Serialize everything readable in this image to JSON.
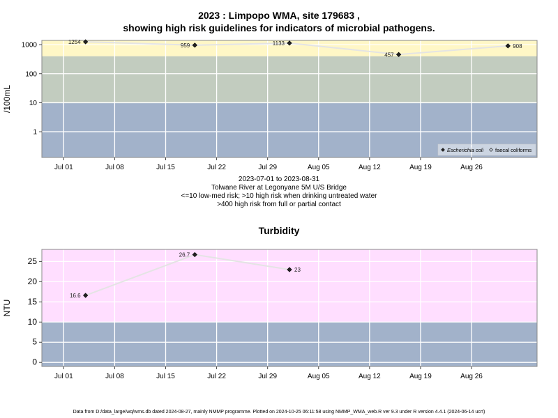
{
  "titles": {
    "main_line1": "2023 : Limpopo WMA, site 179683 ,",
    "main_line2": "showing high risk guidelines for indicators of microbial pathogens.",
    "turbidity": "Turbidity"
  },
  "captions": {
    "date_range": "2023-07-01 to 2023-08-31",
    "site": "Tolwane River at Legonyane 5M U/S Bridge",
    "risk_line1": "<=10 low-med risk; >10 high risk when drinking untreated water",
    "risk_line2": ">400 high risk from full or partial contact"
  },
  "footer": "Data from D:/data_large/wq/wms.db dated 2024-08-27, mainly NMMP programme. Plotted on 2024-10-25 06:11:58 using NMMP_WMA_web.R ver 9.3 under R version 4.4.1 (2024-06-14 ucrt)",
  "colors": {
    "yellow_band": "#FFF7C6",
    "green_band": "#C2CCBF",
    "blue_band": "#A2B2CA",
    "pink_band": "#FFDEFF",
    "line": "#E4E4E4",
    "marker": "#222222"
  },
  "chart_data": [
    {
      "type": "line",
      "title": "2023 : Limpopo WMA, site 179683 , showing high risk guidelines for indicators of microbial pathogens.",
      "ylabel": "/100mL",
      "y_scale": "log",
      "ylim": [
        0.13,
        1400
      ],
      "xlim": [
        "2023-06-28",
        "2023-09-04"
      ],
      "x_ticks": [
        "Jul 01",
        "Jul 08",
        "Jul 15",
        "Jul 22",
        "Jul 29",
        "Aug 05",
        "Aug 12",
        "Aug 19",
        "Aug 26"
      ],
      "x_tick_dates": [
        "2023-07-01",
        "2023-07-08",
        "2023-07-15",
        "2023-07-22",
        "2023-07-29",
        "2023-08-05",
        "2023-08-12",
        "2023-08-19",
        "2023-08-26"
      ],
      "y_ticks": [
        "1",
        "10",
        "100",
        "1000"
      ],
      "y_tick_values": [
        1,
        10,
        100,
        1000
      ],
      "bands": [
        {
          "from": 0.13,
          "to": 10,
          "color": "blue_band"
        },
        {
          "from": 10,
          "to": 400,
          "color": "green_band"
        },
        {
          "from": 400,
          "to": 1400,
          "color": "yellow_band"
        }
      ],
      "legend_position": "bottom-right",
      "legend": [
        {
          "label": "Escherichia coli",
          "marker": "filled-diamond"
        },
        {
          "label": "faecal coliforms",
          "marker": "open-diamond"
        }
      ],
      "series": [
        {
          "name": "Escherichia coli",
          "points": [
            {
              "x": "2023-07-04",
              "y": 1254,
              "label": "1254"
            },
            {
              "x": "2023-07-19",
              "y": 959,
              "label": "959"
            },
            {
              "x": "2023-08-01",
              "y": 1133,
              "label": "1133"
            },
            {
              "x": "2023-08-16",
              "y": 457,
              "label": "457"
            },
            {
              "x": "2023-08-31",
              "y": 908,
              "label": "908"
            }
          ]
        }
      ]
    },
    {
      "type": "line",
      "title": "Turbidity",
      "ylabel": "NTU",
      "ylim": [
        -1,
        28
      ],
      "xlim": [
        "2023-06-28",
        "2023-09-04"
      ],
      "x_ticks": [
        "Jul 01",
        "Jul 08",
        "Jul 15",
        "Jul 22",
        "Jul 29",
        "Aug 05",
        "Aug 12",
        "Aug 19",
        "Aug 26"
      ],
      "x_tick_dates": [
        "2023-07-01",
        "2023-07-08",
        "2023-07-15",
        "2023-07-22",
        "2023-07-29",
        "2023-08-05",
        "2023-08-12",
        "2023-08-19",
        "2023-08-26"
      ],
      "y_ticks": [
        "0",
        "5",
        "10",
        "15",
        "20",
        "25"
      ],
      "y_tick_values": [
        0,
        5,
        10,
        15,
        20,
        25
      ],
      "bands": [
        {
          "from": -1,
          "to": 10,
          "color": "blue_band"
        },
        {
          "from": 10,
          "to": 28,
          "color": "pink_band"
        }
      ],
      "series": [
        {
          "name": "Turbidity",
          "points": [
            {
              "x": "2023-07-04",
              "y": 16.6,
              "label": "16.6"
            },
            {
              "x": "2023-07-19",
              "y": 26.7,
              "label": "26.7"
            },
            {
              "x": "2023-08-01",
              "y": 23,
              "label": "23"
            }
          ]
        }
      ]
    }
  ]
}
